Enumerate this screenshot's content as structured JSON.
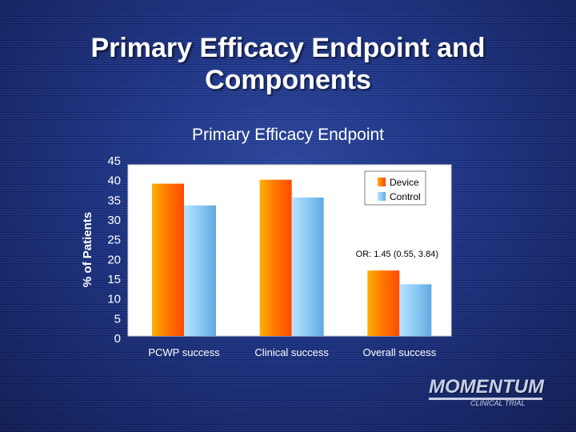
{
  "slide": {
    "title_line1": "Primary Efficacy Endpoint and",
    "title_line2": "Components"
  },
  "chart_data": {
    "type": "bar",
    "title": "Primary Efficacy Endpoint",
    "ylabel": "% of Patients",
    "xlabel": "",
    "categories": [
      "PCWP success",
      "Clinical success",
      "Overall success"
    ],
    "series": [
      {
        "name": "Device",
        "values": [
          39,
          40,
          17
        ],
        "color": "#ff8000"
      },
      {
        "name": "Control",
        "values": [
          33.5,
          35.5,
          13.5
        ],
        "color": "#8cc8f5"
      }
    ],
    "ylim": [
      0,
      45
    ],
    "yticks": [
      0,
      5,
      10,
      15,
      20,
      25,
      30,
      35,
      40,
      45
    ],
    "grid": false,
    "legend": "top-right",
    "annotations": [
      "OR: 1.45 (0.55, 3.84)"
    ],
    "plot_background": "#ffffff"
  },
  "logo": {
    "main": "MOMENTUM",
    "sub": "CLINICAL TRIAL"
  }
}
